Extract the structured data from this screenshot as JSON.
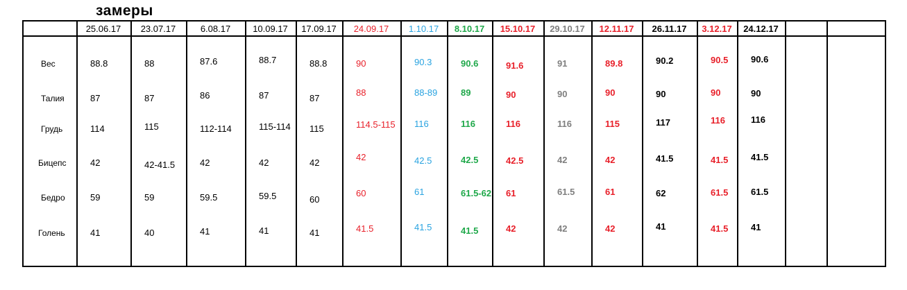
{
  "title": "замеры",
  "colors": {
    "black": "#000000",
    "red": "#e8202a",
    "blue": "#29a3e0",
    "green": "#1fa84a",
    "gray": "#7f7f7f"
  },
  "row_labels": [
    "Вес",
    "Талия",
    "Грудь",
    "Бицепс",
    "Бедро",
    "Голень"
  ],
  "columns": [
    {
      "date": "25.06.17",
      "color": "black",
      "bold": false,
      "values": [
        "88.8",
        "87",
        "114",
        "42",
        "59",
        "41"
      ]
    },
    {
      "date": "23.07.17",
      "color": "black",
      "bold": false,
      "values": [
        "88",
        "87",
        "115",
        "42-41.5",
        "59",
        "40"
      ]
    },
    {
      "date": "6.08.17",
      "color": "black",
      "bold": false,
      "values": [
        "87.6",
        "86",
        "112-114",
        "42",
        "59.5",
        "41"
      ]
    },
    {
      "date": "10.09.17",
      "color": "black",
      "bold": false,
      "values": [
        "88.7",
        "87",
        "115-114",
        "42",
        "59.5",
        "41"
      ]
    },
    {
      "date": "17.09.17",
      "color": "black",
      "bold": false,
      "values": [
        "88.8",
        "87",
        "115",
        "42",
        "60",
        "41"
      ]
    },
    {
      "date": "24.09.17",
      "color": "red",
      "bold": false,
      "values": [
        "90",
        "88",
        "114.5-115",
        "42",
        "60",
        "41.5"
      ]
    },
    {
      "date": "1.10.17",
      "color": "blue",
      "bold": false,
      "values": [
        "90.3",
        "88-89",
        "116",
        "42.5",
        "61",
        "41.5"
      ]
    },
    {
      "date": "8.10.17",
      "color": "green",
      "bold": true,
      "values": [
        "90.6",
        "89",
        "116",
        "42.5",
        "61.5-62",
        "41.5"
      ]
    },
    {
      "date": "15.10.17",
      "color": "red",
      "bold": true,
      "values": [
        "91.6",
        "90",
        "116",
        "42.5",
        "61",
        "42"
      ]
    },
    {
      "date": "29.10.17",
      "color": "gray",
      "bold": true,
      "values": [
        "91",
        "90",
        "116",
        "42",
        "61.5",
        "42"
      ]
    },
    {
      "date": "12.11.17",
      "color": "red",
      "bold": true,
      "values": [
        "89.8",
        "90",
        "115",
        "42",
        "61",
        "42"
      ]
    },
    {
      "date": "26.11.17",
      "color": "black",
      "bold": true,
      "values": [
        "90.2",
        "90",
        "117",
        "41.5",
        "62",
        "41"
      ]
    },
    {
      "date": "3.12.17",
      "color": "red",
      "bold": true,
      "values": [
        "90.5",
        "90",
        "116",
        "41.5",
        "61.5",
        "41.5"
      ]
    },
    {
      "date": "24.12.17",
      "color": "black",
      "bold": true,
      "values": [
        "90.6",
        "90",
        "116",
        "41.5",
        "61.5",
        "41"
      ]
    },
    {
      "date": "",
      "color": "black",
      "bold": false,
      "values": [
        "",
        "",
        "",
        "",
        "",
        ""
      ]
    },
    {
      "date": "",
      "color": "black",
      "bold": false,
      "values": [
        "",
        "",
        "",
        "",
        "",
        ""
      ]
    }
  ]
}
